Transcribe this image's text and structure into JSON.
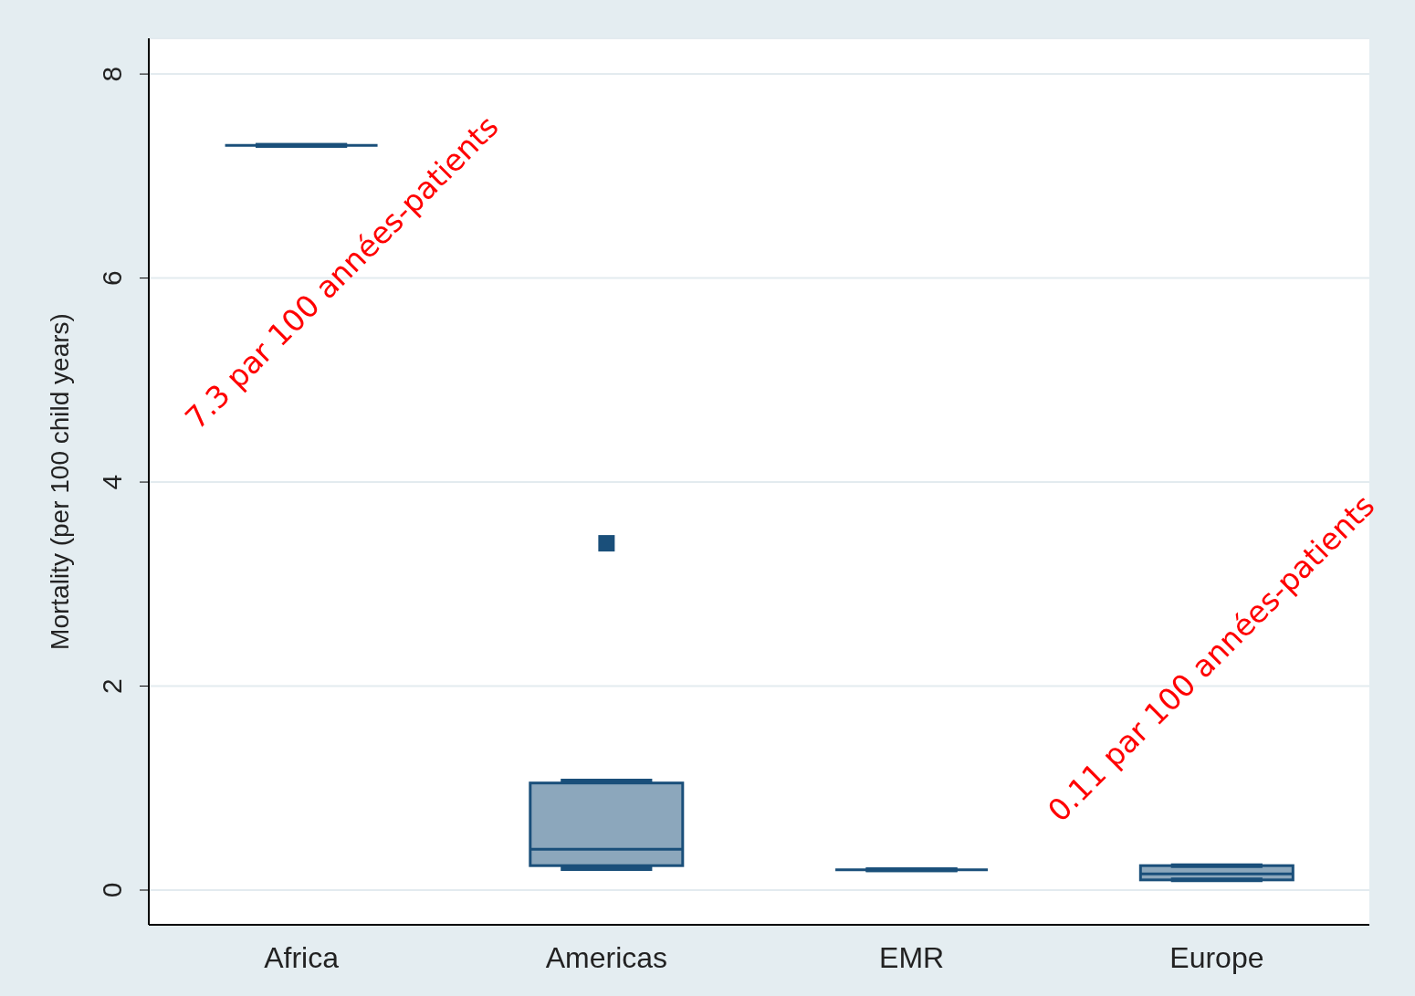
{
  "chart_data": {
    "type": "box",
    "ylabel": "Mortality (per 100 child years)",
    "categories": [
      "Africa",
      "Americas",
      "EMR",
      "Europe"
    ],
    "boxes": [
      {
        "low": 7.3,
        "q1": 7.3,
        "median": 7.3,
        "q3": 7.3,
        "high": 7.3
      },
      {
        "low": 0.21,
        "q1": 0.24,
        "median": 0.4,
        "q3": 1.05,
        "high": 1.07,
        "outliers": [
          3.4
        ]
      },
      {
        "low": 0.2,
        "q1": 0.2,
        "median": 0.2,
        "q3": 0.2,
        "high": 0.2
      },
      {
        "low": 0.1,
        "q1": 0.1,
        "median": 0.16,
        "q3": 0.24,
        "high": 0.24
      }
    ],
    "color": "#1a4f7a",
    "ylim": [
      -0.34,
      8.35
    ],
    "yticks": [
      0,
      2,
      4,
      6,
      8
    ],
    "grid": "y",
    "annotations": [
      "7.3 par 100 années-patients",
      "0.11 par 100 années-patients"
    ]
  }
}
